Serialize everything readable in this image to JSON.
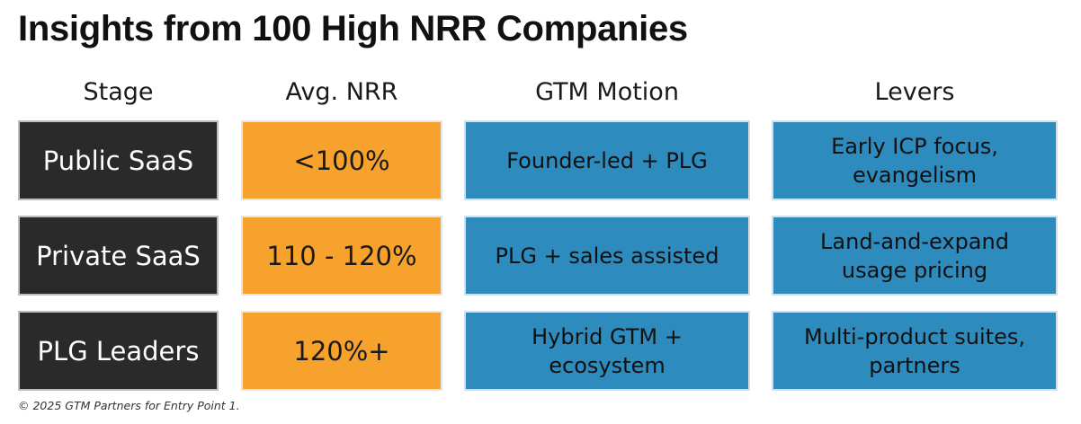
{
  "title": "Insights from 100 High NRR Companies",
  "headers": {
    "stage": "Stage",
    "nrr": "Avg. NRR",
    "gtm": "GTM Motion",
    "levers": "Levers"
  },
  "rows": [
    {
      "stage": "Public SaaS",
      "nrr": "<100%",
      "gtm": "Founder-led + PLG",
      "levers": "Early ICP focus, evangelism"
    },
    {
      "stage": "Private SaaS",
      "nrr": "110 - 120%",
      "gtm": "PLG + sales assisted",
      "levers": "Land-and-expand usage pricing"
    },
    {
      "stage": "PLG Leaders",
      "nrr": "120%+",
      "gtm": "Hybrid GTM + ecosystem",
      "levers": "Multi-product suites, partners"
    }
  ],
  "footer": "© 2025 GTM Partners for Entry Point 1.",
  "colors": {
    "stage": "#2a2a2a",
    "nrr": "#f7a22c",
    "motion": "#2d8bbd"
  }
}
